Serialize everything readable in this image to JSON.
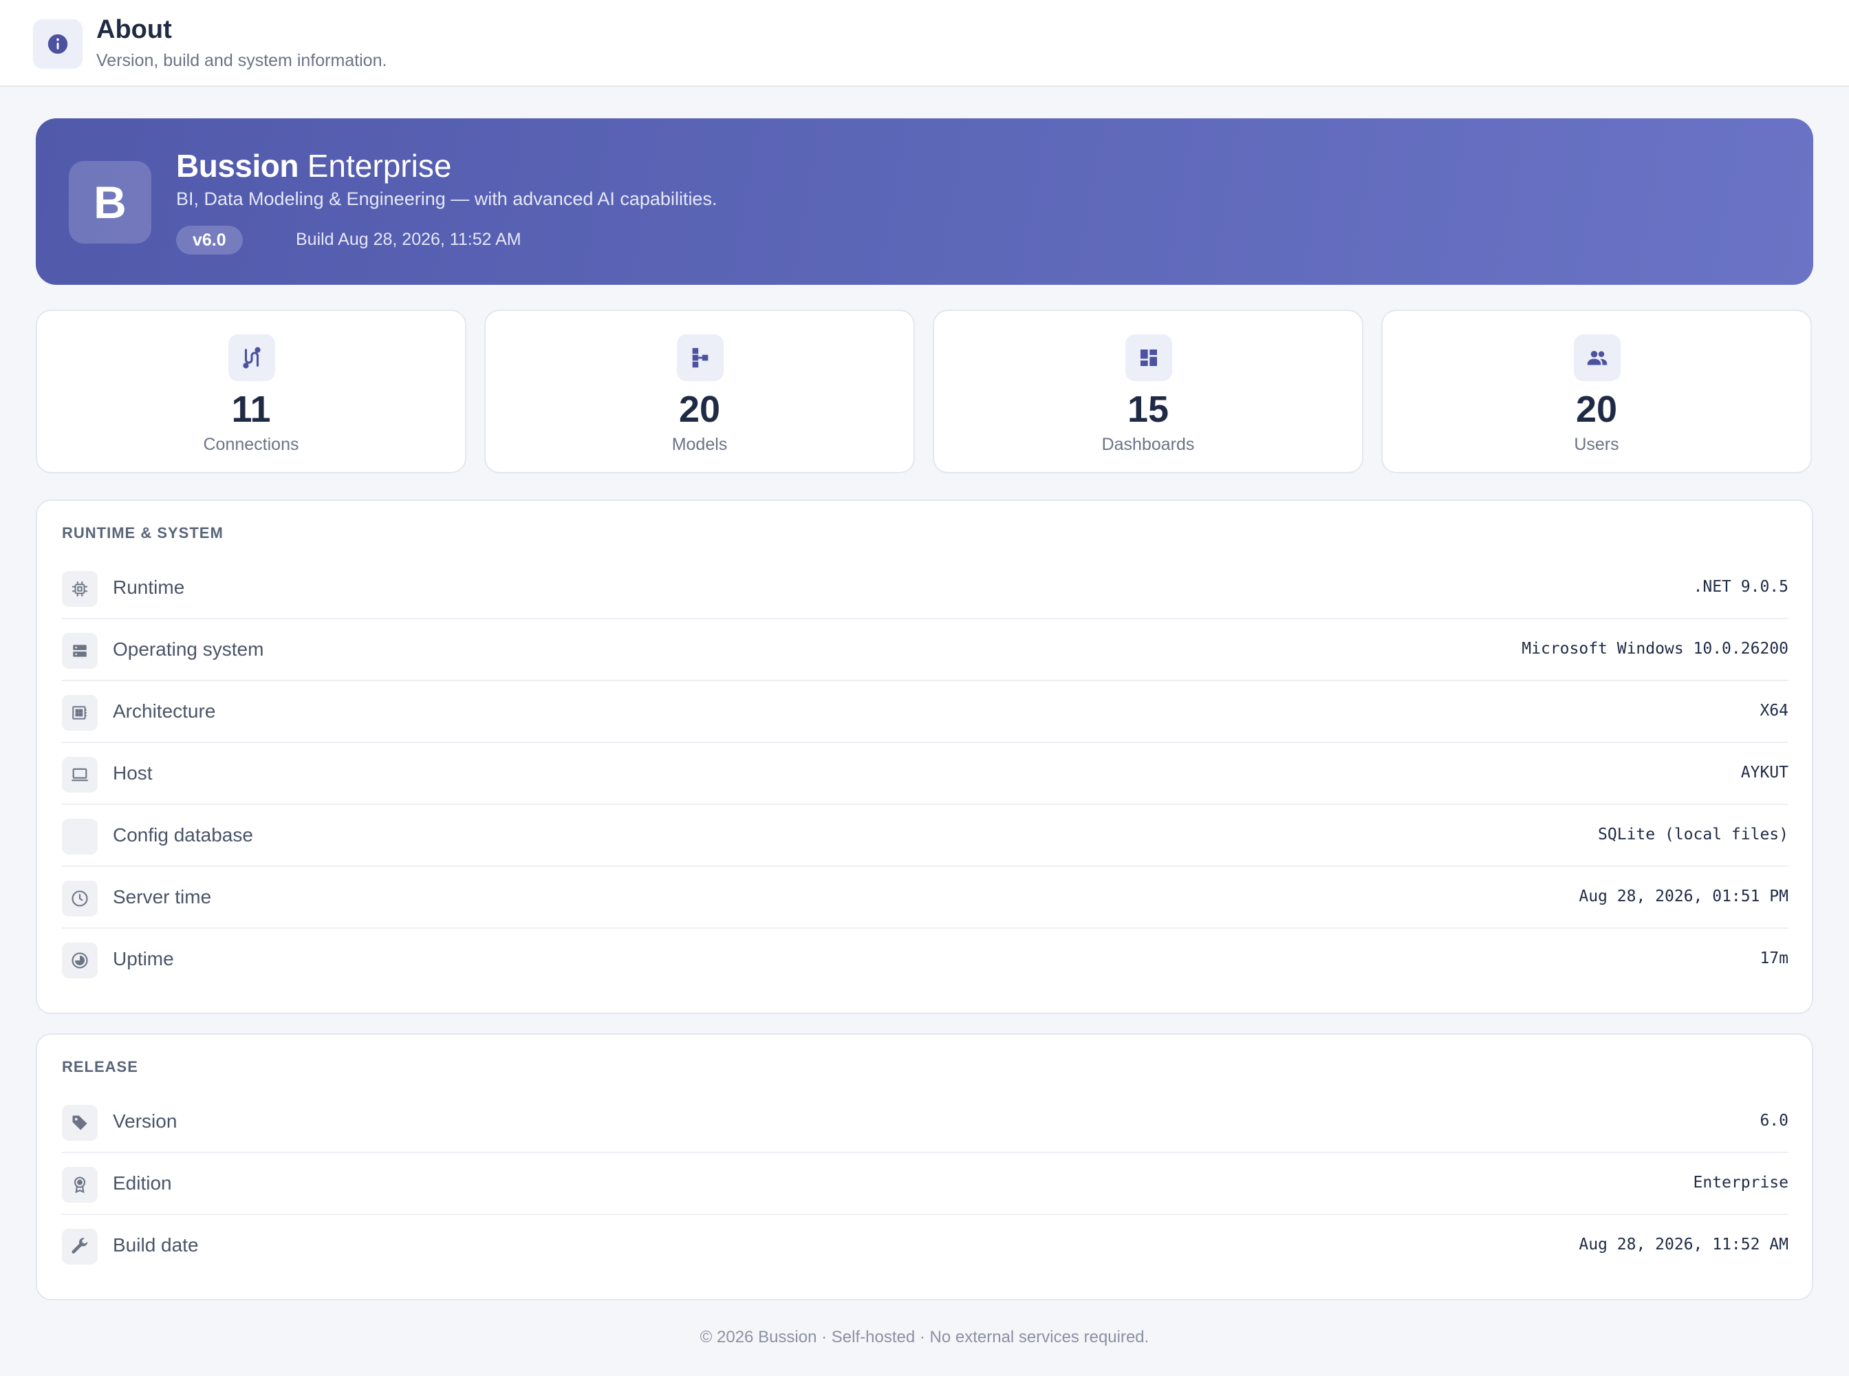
{
  "header": {
    "title": "About",
    "subtitle": "Version, build and system information.",
    "icon": "info-icon"
  },
  "hero": {
    "logo_letter": "B",
    "product_name": "Bussion",
    "product_edition": "Enterprise",
    "tagline": "BI, Data Modeling & Engineering — with advanced AI capabilities.",
    "version_pill": "v6.0",
    "build": "Build Aug 28, 2026, 11:52 AM"
  },
  "stats": [
    {
      "icon": "connections-icon",
      "value": "11",
      "label": "Connections"
    },
    {
      "icon": "models-icon",
      "value": "20",
      "label": "Models"
    },
    {
      "icon": "dashboards-icon",
      "value": "15",
      "label": "Dashboards"
    },
    {
      "icon": "users-icon",
      "value": "20",
      "label": "Users"
    }
  ],
  "runtime": {
    "title": "RUNTIME & SYSTEM",
    "rows": [
      {
        "icon": "cpu-icon",
        "label": "Runtime",
        "value": ".NET 9.0.5"
      },
      {
        "icon": "server-icon",
        "label": "Operating system",
        "value": "Microsoft Windows 10.0.26200"
      },
      {
        "icon": "chip-icon",
        "label": "Architecture",
        "value": "X64"
      },
      {
        "icon": "laptop-icon",
        "label": "Host",
        "value": "AYKUT"
      },
      {
        "icon": "database-icon",
        "label": "Config database",
        "value": "SQLite (local files)"
      },
      {
        "icon": "clock-icon",
        "label": "Server time",
        "value": "Aug 28, 2026, 01:51 PM"
      },
      {
        "icon": "uptime-icon",
        "label": "Uptime",
        "value": "17m"
      }
    ]
  },
  "release": {
    "title": "RELEASE",
    "rows": [
      {
        "icon": "tag-icon",
        "label": "Version",
        "value": "6.0"
      },
      {
        "icon": "award-icon",
        "label": "Edition",
        "value": "Enterprise"
      },
      {
        "icon": "wrench-icon",
        "label": "Build date",
        "value": "Aug 28, 2026, 11:52 AM"
      }
    ]
  },
  "footer": {
    "text": "© 2026 Bussion · Self-hosted · No external services required."
  },
  "colors": {
    "accent": "#5159ab",
    "accent_light": "#6a73c5",
    "background": "#f5f6fa",
    "text": "#1f2a44",
    "muted": "#6b7385"
  }
}
